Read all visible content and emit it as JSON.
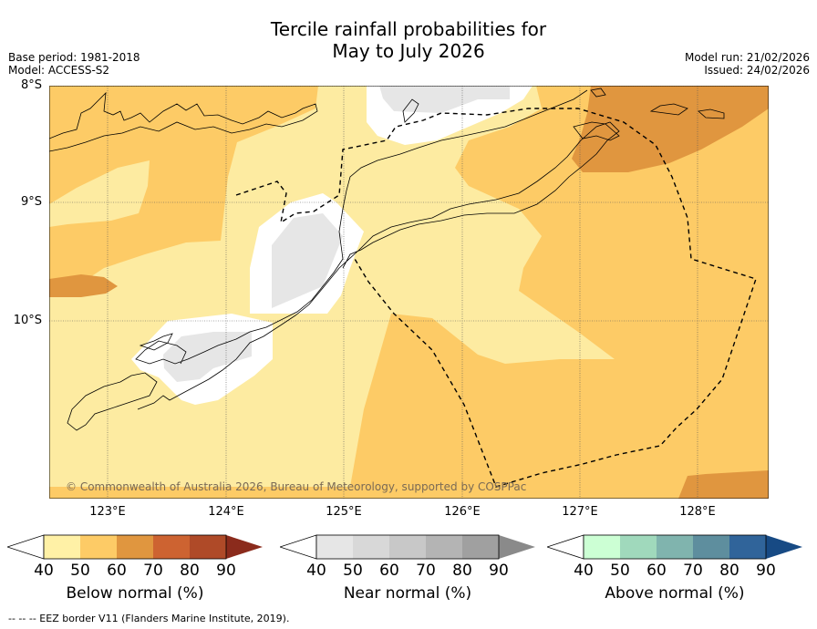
{
  "title": {
    "line1": "Tercile rainfall probabilities for",
    "line2": "May to July 2026"
  },
  "meta": {
    "base_period": "Base period: 1981-2018",
    "model": "Model: ACCESS-S2",
    "model_run": "Model run: 21/02/2026",
    "issued": "Issued: 24/02/2026"
  },
  "axes": {
    "lat_labels": [
      "8°S",
      "9°S",
      "10°S"
    ],
    "lon_labels": [
      "123°E",
      "124°E",
      "125°E",
      "126°E",
      "127°E",
      "128°E"
    ]
  },
  "copyright": "© Commonwealth of Australia 2026, Bureau of Meteorology, supported by COSPPac",
  "colorbars": [
    {
      "title": "Below normal (%)",
      "ticks": [
        "40",
        "50",
        "60",
        "70",
        "80",
        "90"
      ],
      "colors": [
        "#fff1a6",
        "#fdcb66",
        "#e0963f",
        "#cd6331",
        "#af4a28",
        "#8b2b1c"
      ]
    },
    {
      "title": "Near normal (%)",
      "ticks": [
        "40",
        "50",
        "60",
        "70",
        "80",
        "90"
      ],
      "colors": [
        "#e6e6e6",
        "#d8d8d8",
        "#c8c8c8",
        "#b4b4b4",
        "#a0a0a0",
        "#8a8a8a"
      ]
    },
    {
      "title": "Above normal (%)",
      "ticks": [
        "40",
        "50",
        "60",
        "70",
        "80",
        "90"
      ],
      "colors": [
        "#ccffd4",
        "#a0d9bc",
        "#80b4ae",
        "#5e8e9e",
        "#30649a",
        "#174a84"
      ]
    }
  ],
  "footer": "--  --  -- EEZ border V11 (Flanders Marine Institute, 2019)."
}
